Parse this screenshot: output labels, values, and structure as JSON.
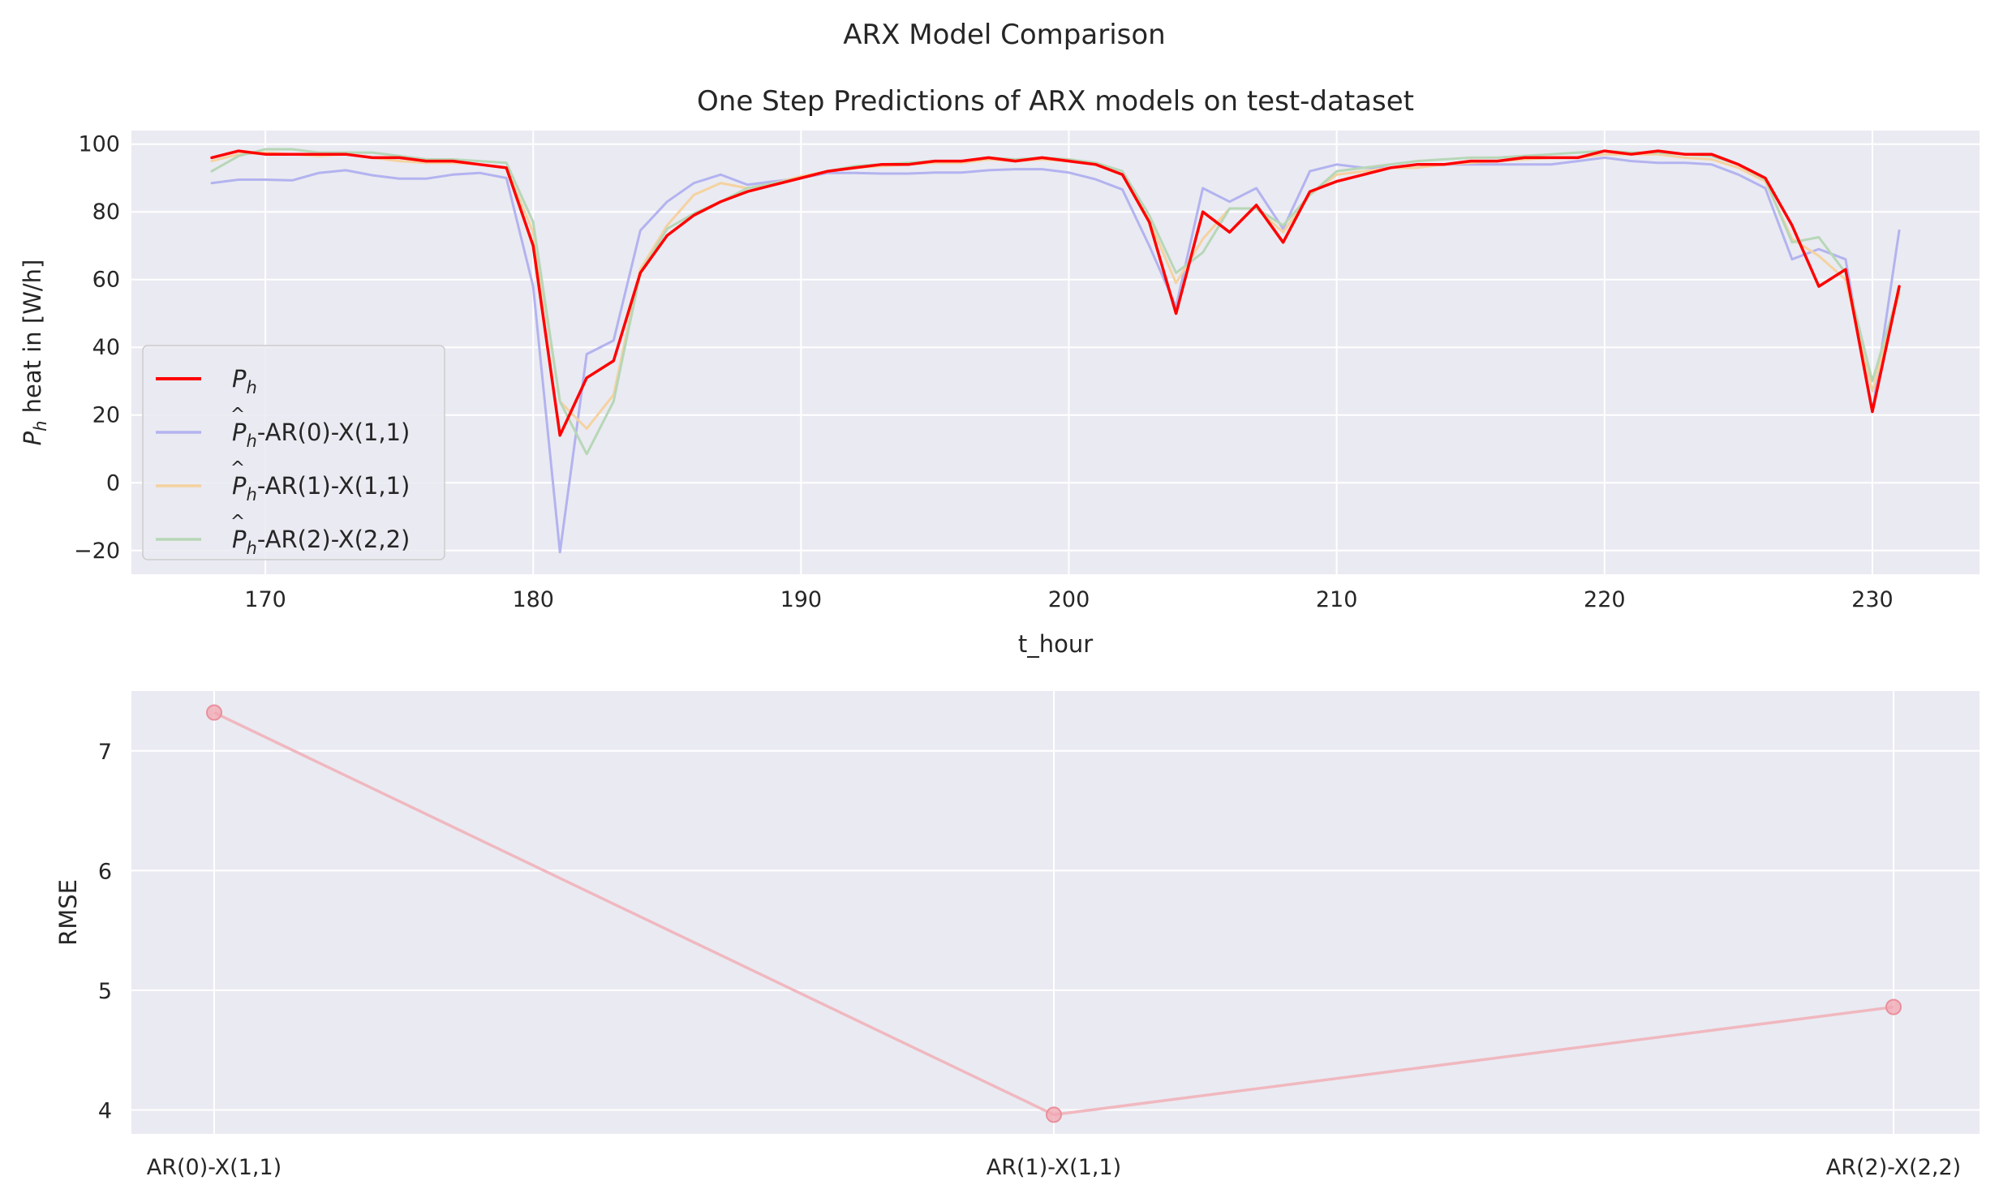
{
  "figure": {
    "suptitle": "ARX Model Comparison"
  },
  "colors": {
    "background": "#eaeaf2",
    "grid": "#ffffff",
    "text": "#262626",
    "actual": "#ff0000",
    "ar0": "#b3b3f0",
    "ar1": "#f5d2a0",
    "ar2": "#b7d7b7",
    "rmse": "#f0b8bf"
  },
  "chart_data": [
    {
      "type": "line",
      "title": "One Step Predictions of ARX models on test-dataset",
      "xlabel": "t_hour",
      "ylabel": "P_h heat in [W/h]",
      "xlim": [
        165,
        234
      ],
      "ylim": [
        -27,
        104
      ],
      "xticks": [
        170,
        180,
        190,
        200,
        210,
        220,
        230
      ],
      "yticks": [
        -20,
        0,
        20,
        40,
        60,
        80,
        100
      ],
      "ytick_labels": [
        "−20",
        "0",
        "20",
        "40",
        "60",
        "80",
        "100"
      ],
      "grid": true,
      "legend": "lower-left",
      "x_start": 168,
      "series": [
        {
          "name": "P_h",
          "legend_main": "P",
          "legend_sub": "h",
          "legend_rest": "",
          "color": "#ff0000",
          "width": 3.5,
          "alpha": 1,
          "values": [
            96,
            98,
            97,
            97,
            97,
            97,
            96,
            96,
            95,
            95,
            94,
            93,
            70,
            14,
            31,
            36,
            62,
            73,
            79,
            83,
            86,
            88,
            90,
            92,
            93,
            94,
            94,
            95,
            95,
            96,
            95,
            96,
            95,
            94,
            91,
            77,
            50,
            80,
            74,
            82,
            71,
            86,
            89,
            91,
            93,
            94,
            94,
            95,
            95,
            96,
            96,
            96,
            98,
            97,
            98,
            97,
            97,
            94,
            90,
            76,
            58,
            63,
            21,
            58
          ]
        },
        {
          "name": "P_h^-AR(0)-X(1,1)",
          "legend_main": "P",
          "legend_sub": "h",
          "legend_rest": "-AR(0)-X(1,1)",
          "color": "#b3b3f0",
          "width": 3,
          "alpha": 1,
          "values": [
            88.5,
            89.5,
            89.5,
            89.3,
            91.5,
            92.3,
            90.8,
            89.8,
            89.8,
            91,
            91.5,
            90,
            58,
            -20.5,
            38,
            42,
            74.5,
            83,
            88.5,
            91,
            88,
            89,
            90,
            91.5,
            91.5,
            91.3,
            91.3,
            91.6,
            91.6,
            92.3,
            92.6,
            92.6,
            91.6,
            89.6,
            86.6,
            70,
            52,
            87,
            83,
            87,
            75,
            92,
            94,
            93,
            93,
            94,
            94,
            94,
            94,
            94,
            94,
            95,
            96,
            95,
            94.5,
            94.5,
            94,
            91,
            87,
            66,
            69,
            66,
            21,
            74.5
          ]
        },
        {
          "name": "P_h^-AR(1)-X(1,1)",
          "legend_main": "P",
          "legend_sub": "h",
          "legend_rest": "-AR(1)-X(1,1)",
          "color": "#f5d2a0",
          "width": 3,
          "alpha": 1,
          "values": [
            95,
            97,
            97.5,
            97,
            96.5,
            97,
            96,
            95,
            94.5,
            94.5,
            94,
            93,
            74,
            24,
            16,
            26,
            63,
            76,
            85,
            88.5,
            87,
            88.5,
            90.5,
            92,
            93,
            93.5,
            94,
            94.5,
            94.5,
            95.5,
            95,
            95.5,
            95,
            94,
            91,
            77.5,
            59,
            72,
            81,
            81,
            74,
            85,
            91,
            92,
            93,
            93,
            94,
            94.5,
            95,
            95.5,
            96,
            96,
            97,
            97,
            97,
            96,
            95.5,
            93,
            89,
            72,
            67,
            60,
            27,
            56
          ]
        },
        {
          "name": "P_h^-AR(2)-X(2,2)",
          "legend_main": "P",
          "legend_sub": "h",
          "legend_rest": "-AR(2)-X(2,2)",
          "color": "#b7d7b7",
          "width": 3,
          "alpha": 1,
          "values": [
            92,
            96.5,
            98.5,
            98.5,
            97.5,
            97.5,
            97.5,
            96.5,
            95.5,
            95.5,
            95,
            94.5,
            77,
            24,
            8.5,
            24,
            62,
            75,
            79.5,
            83,
            87,
            88.5,
            90,
            92,
            93.5,
            94,
            94.5,
            95,
            95,
            96,
            95.5,
            96,
            95.5,
            94.5,
            92,
            79,
            62,
            68,
            81,
            81,
            76,
            85,
            92,
            93,
            94,
            95,
            95.5,
            96,
            96,
            96.5,
            97,
            97.5,
            98,
            97.5,
            97.5,
            97,
            96.5,
            94,
            89.5,
            71,
            72.5,
            62,
            30,
            57
          ]
        }
      ]
    },
    {
      "type": "line",
      "ylabel": "RMSE",
      "categories": [
        "AR(0)-X(1,1)",
        "AR(1)-X(1,1)",
        "AR(2)-X(2,2)"
      ],
      "values": [
        7.32,
        3.96,
        4.86
      ],
      "ylim": [
        3.8,
        7.5
      ],
      "yticks": [
        4,
        5,
        6,
        7
      ],
      "grid": true,
      "color": "#f0b8bf",
      "marker": "circle"
    }
  ]
}
